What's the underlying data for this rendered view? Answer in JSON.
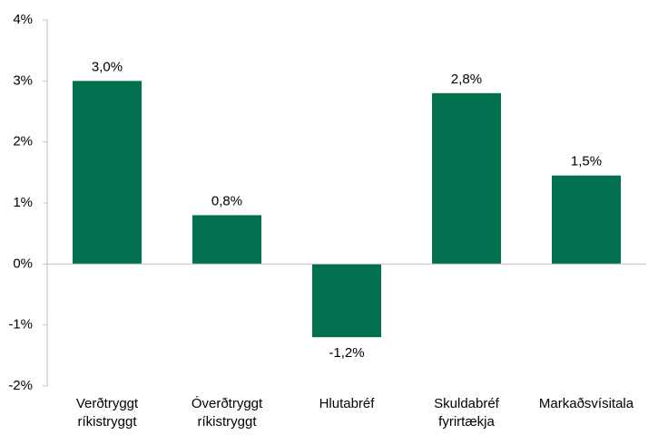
{
  "chart_data": {
    "type": "bar",
    "categories": [
      "Verðtryggt ríkistryggt",
      "Óverðtryggt ríkistryggt",
      "Hlutabréf",
      "Skuldabréf fyrirtækja",
      "Markaðsvísitala"
    ],
    "values": [
      3.0,
      0.8,
      -1.2,
      2.8,
      1.45
    ],
    "value_labels": [
      "3,0%",
      "0,8%",
      "-1,2%",
      "2,8%",
      "1,5%"
    ],
    "color": "#00704f",
    "ylim": [
      -2,
      4
    ],
    "yticks": [
      {
        "value": -2,
        "label": "-2%"
      },
      {
        "value": -1,
        "label": "-1%"
      },
      {
        "value": 0,
        "label": "0%"
      },
      {
        "value": 1,
        "label": "1%"
      },
      {
        "value": 2,
        "label": "2%"
      },
      {
        "value": 3,
        "label": "3%"
      },
      {
        "value": 4,
        "label": "4%"
      }
    ],
    "grid": false
  }
}
